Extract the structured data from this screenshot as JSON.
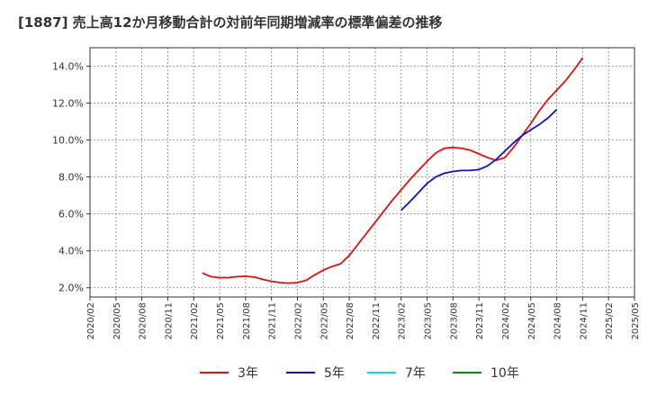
{
  "chart_data": {
    "type": "line",
    "title": "[1887]  売上高12か月移動合計の対前年同期増減率の標準偏差の推移",
    "xlabel": "",
    "ylabel": "",
    "ylim": [
      1.5,
      15.0
    ],
    "y_ticks": [
      {
        "value": 2.0,
        "label": "2.0%"
      },
      {
        "value": 4.0,
        "label": "4.0%"
      },
      {
        "value": 6.0,
        "label": "6.0%"
      },
      {
        "value": 8.0,
        "label": "8.0%"
      },
      {
        "value": 10.0,
        "label": "10.0%"
      },
      {
        "value": 12.0,
        "label": "12.0%"
      },
      {
        "value": 14.0,
        "label": "14.0%"
      }
    ],
    "x_range_months": [
      0,
      60
    ],
    "x_ticks": [
      {
        "m": 0,
        "label": "2020/02"
      },
      {
        "m": 3,
        "label": "2020/05"
      },
      {
        "m": 6,
        "label": "2020/08"
      },
      {
        "m": 9,
        "label": "2020/11"
      },
      {
        "m": 12,
        "label": "2021/02"
      },
      {
        "m": 15,
        "label": "2021/05"
      },
      {
        "m": 18,
        "label": "2021/08"
      },
      {
        "m": 21,
        "label": "2021/11"
      },
      {
        "m": 24,
        "label": "2022/02"
      },
      {
        "m": 27,
        "label": "2022/05"
      },
      {
        "m": 30,
        "label": "2022/08"
      },
      {
        "m": 33,
        "label": "2022/11"
      },
      {
        "m": 36,
        "label": "2023/02"
      },
      {
        "m": 39,
        "label": "2023/05"
      },
      {
        "m": 42,
        "label": "2023/08"
      },
      {
        "m": 45,
        "label": "2023/11"
      },
      {
        "m": 48,
        "label": "2024/02"
      },
      {
        "m": 51,
        "label": "2024/05"
      },
      {
        "m": 54,
        "label": "2024/08"
      },
      {
        "m": 57,
        "label": "2024/11"
      },
      {
        "m": 60,
        "label": "2025/02"
      },
      {
        "m": 63,
        "label": "2025/05"
      }
    ],
    "x_axis_max_month": 63,
    "legend": "bottom",
    "series": [
      {
        "name": "3年",
        "color": "#dd1111",
        "start_month": 13,
        "values": [
          2.8,
          2.6,
          2.55,
          2.55,
          2.6,
          2.62,
          2.58,
          2.45,
          2.35,
          2.28,
          2.25,
          2.28,
          2.4,
          2.7,
          2.95,
          3.15,
          3.3,
          3.75,
          4.35,
          4.95,
          5.55,
          6.15,
          6.75,
          7.3,
          7.85,
          8.35,
          8.85,
          9.3,
          9.55,
          9.6,
          9.55,
          9.45,
          9.25,
          9.05,
          8.9,
          9.05,
          9.6,
          10.25,
          10.9,
          11.6,
          12.2,
          12.7,
          13.2,
          13.8,
          14.45
        ]
      },
      {
        "name": "5年",
        "color": "#1111cc",
        "start_month": 36,
        "values": [
          6.2,
          6.65,
          7.15,
          7.65,
          8.0,
          8.2,
          8.3,
          8.35,
          8.35,
          8.4,
          8.6,
          8.95,
          9.4,
          9.85,
          10.25,
          10.55,
          10.85,
          11.2,
          11.65
        ]
      },
      {
        "name": "7年",
        "color": "#11dddd",
        "start_month": 0,
        "values": []
      },
      {
        "name": "10年",
        "color": "#118811",
        "start_month": 0,
        "values": []
      }
    ]
  }
}
